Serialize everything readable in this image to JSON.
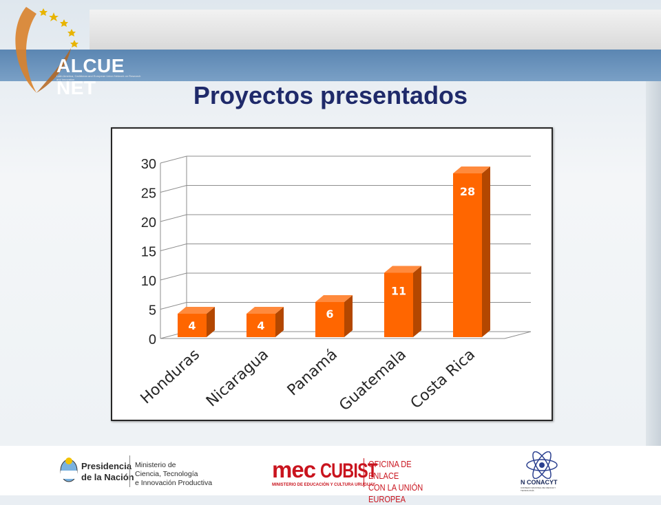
{
  "header": {
    "logo_text": "ALCUE NET",
    "logo_subtext": "Latin America, Caribbean and European Union Network on Research and Innovation",
    "title": "Proyectos presentados"
  },
  "colors": {
    "bar_front": "#ff6600",
    "bar_side": "#b34700",
    "bar_top": "#ff8a3d",
    "title": "#1f2a6a",
    "banner": "#6890b8"
  },
  "chart_data": {
    "type": "bar",
    "three_d": true,
    "categories": [
      "Honduras",
      "Nicaragua",
      "Panamá",
      "Guatemala",
      "Costa Rica"
    ],
    "values": [
      4,
      4,
      6,
      11,
      28
    ],
    "data_labels": [
      "4",
      "4",
      "6",
      "11",
      "28"
    ],
    "yticks": [
      "0",
      "5",
      "10",
      "15",
      "20",
      "25",
      "30"
    ],
    "ylim": [
      0,
      30
    ],
    "title": "",
    "xlabel": "",
    "ylabel": "",
    "grid": true,
    "legend": "none"
  },
  "footer": {
    "presidencia": [
      "Presidencia",
      "de la Nación"
    ],
    "ministerio": [
      "Ministerio de",
      "Ciencia, Tecnología",
      "e Innovación Productiva"
    ],
    "mec": "mec",
    "cubist": "CUBIST",
    "mec_sub": "MINISTERIO DE EDUCACIÓN Y CULTURA URUGUAY",
    "oficina": [
      "OFICINA DE ENLACE",
      "CON LA UNIÓN EUROPEA"
    ],
    "conacyt": "N CONACYT",
    "conacyt_sub": "CONSEJO NACIONAL DE CIENCIA Y TECNOLOGÍA"
  }
}
